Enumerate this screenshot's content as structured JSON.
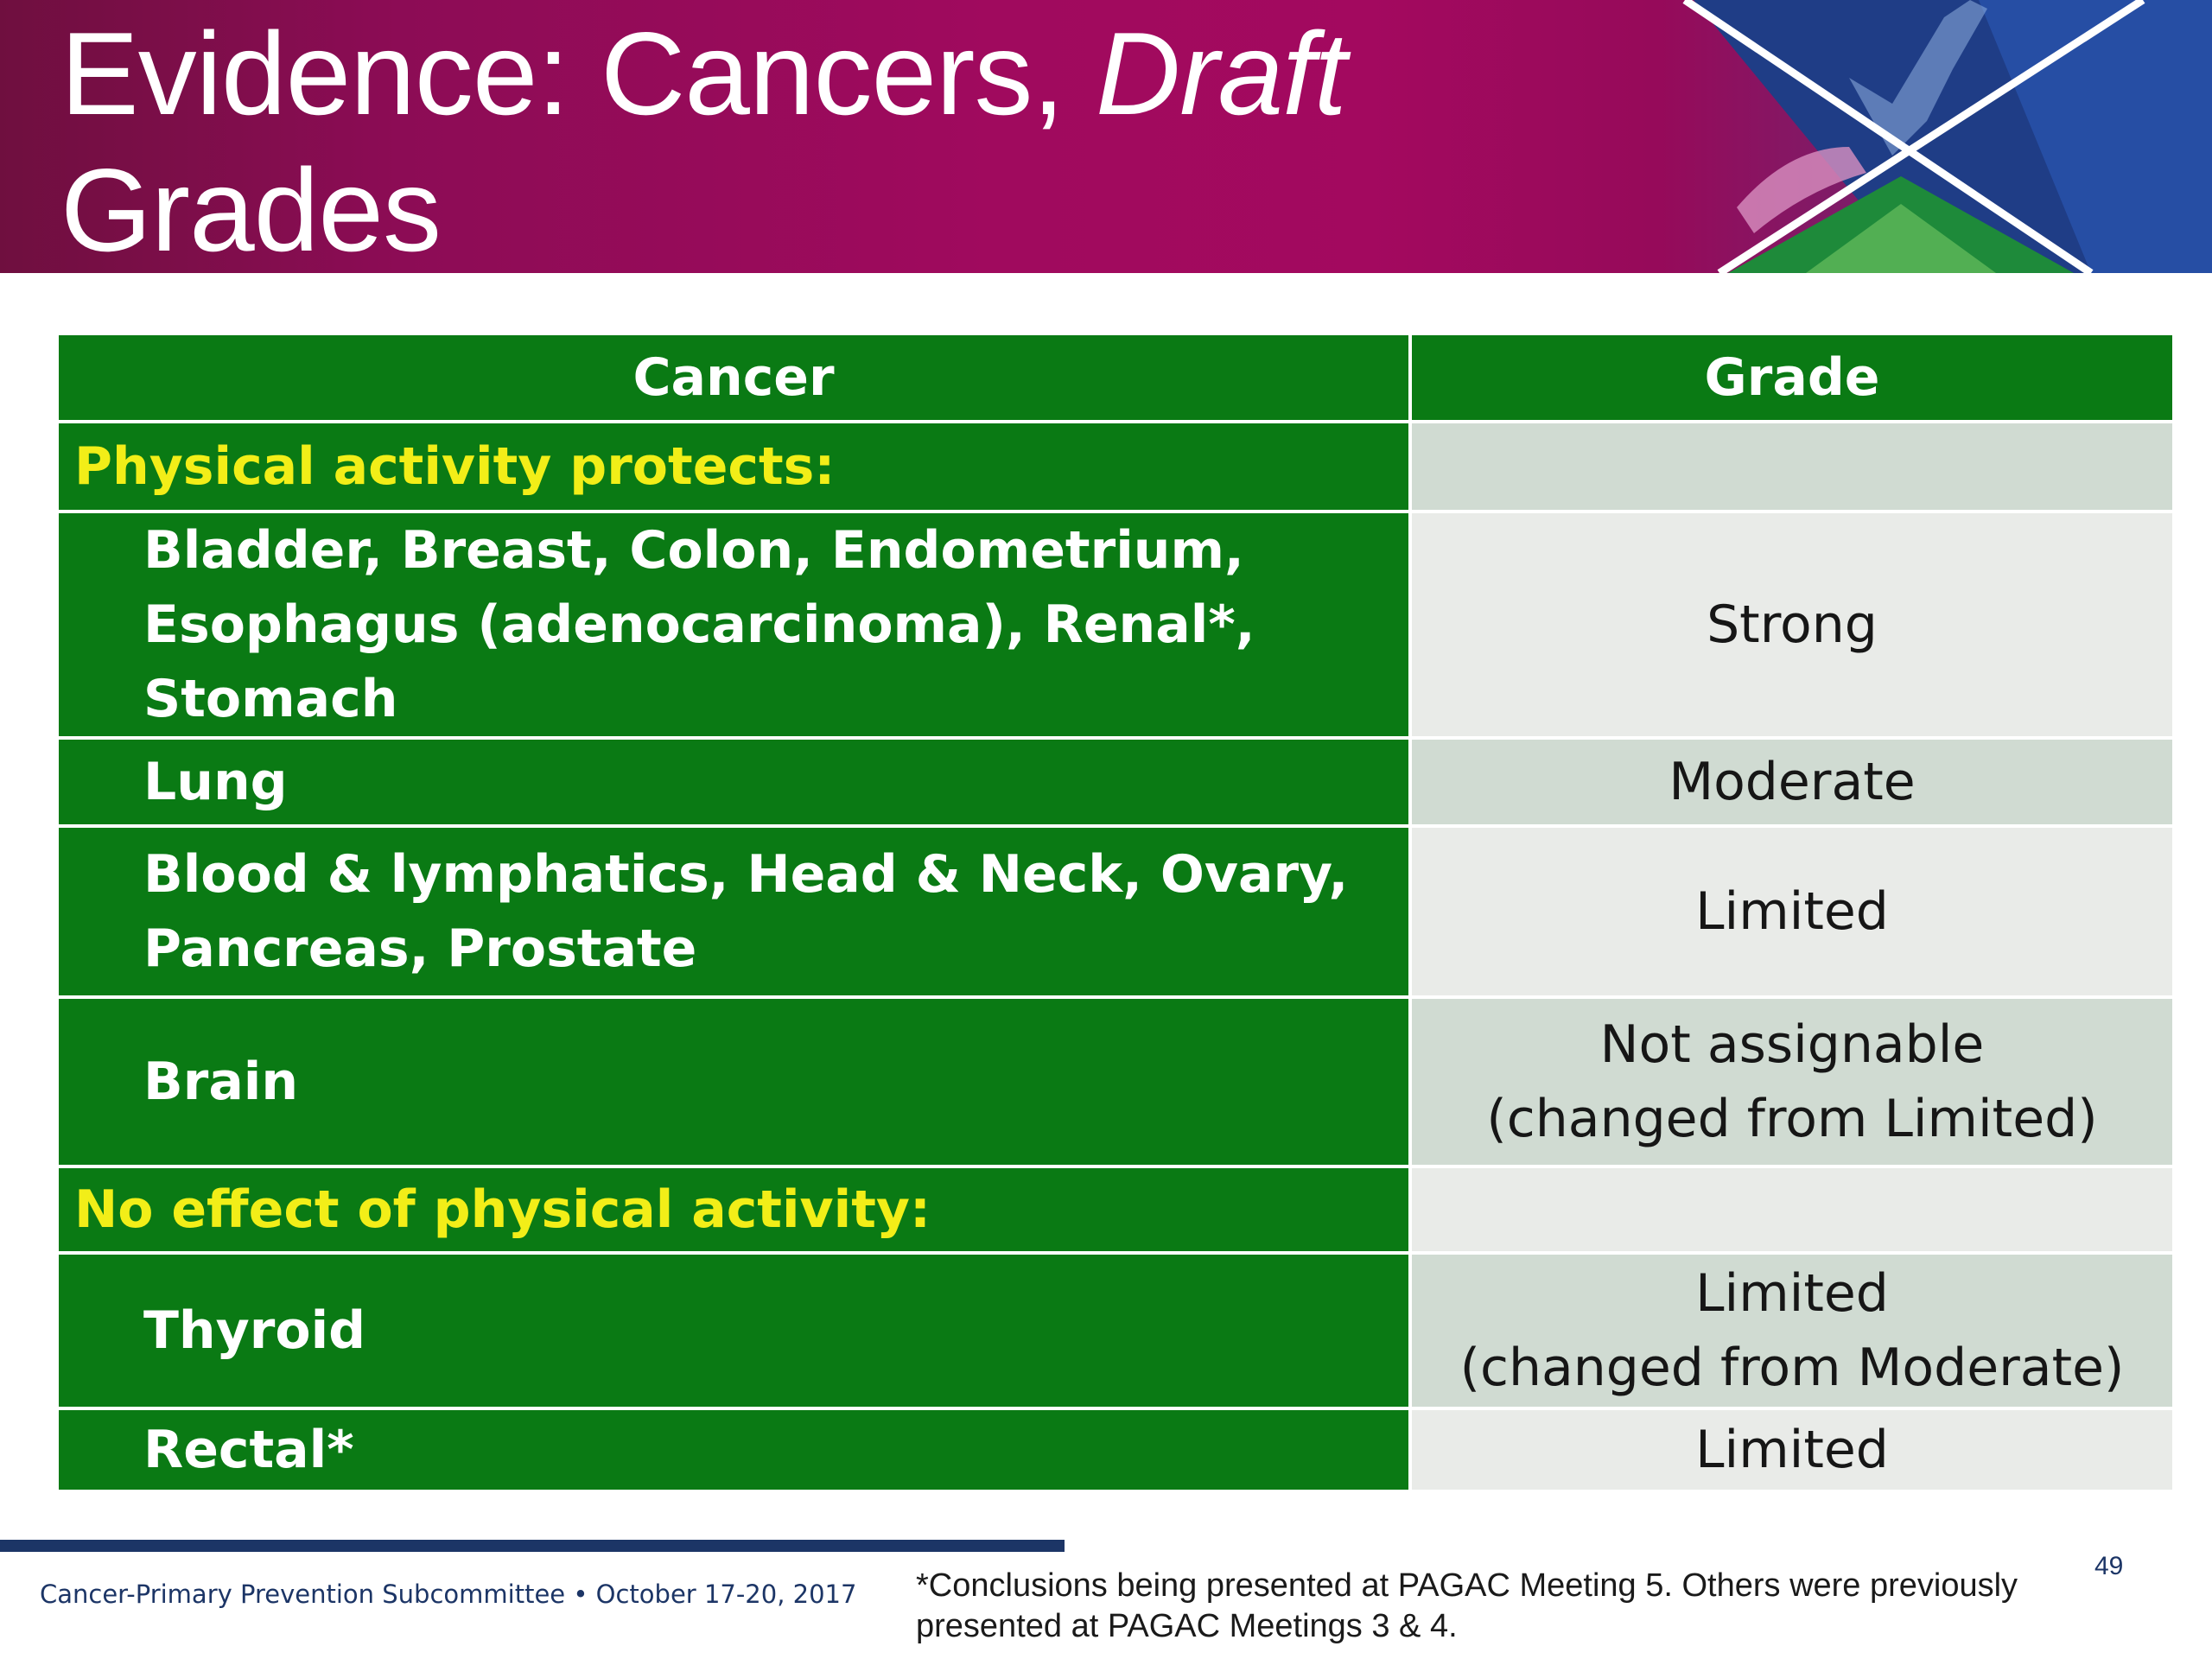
{
  "slide": {
    "title_line1": "Evidence: Cancers, ",
    "title_emphasis": "Draft",
    "title_line2": "Grades",
    "page_number": "49"
  },
  "table": {
    "headers": {
      "cancer": "Cancer",
      "grade": "Grade"
    },
    "rows": [
      {
        "cancer": "Physical activity protects:",
        "grade": "",
        "kind": "section"
      },
      {
        "cancer": "Bladder, Breast, Colon, Endometrium, Esophagus (adenocarcinoma), Renal*, Stomach",
        "grade": "Strong",
        "kind": "item"
      },
      {
        "cancer": "Lung",
        "grade": "Moderate",
        "kind": "item"
      },
      {
        "cancer": "Blood & lymphatics, Head & Neck, Ovary, Pancreas, Prostate",
        "grade": "Limited",
        "kind": "item"
      },
      {
        "cancer": "Brain",
        "grade": "Not assignable",
        "grade_note": "(changed from Limited)",
        "kind": "item"
      },
      {
        "cancer": "No effect of physical activity:",
        "grade": "",
        "kind": "section"
      },
      {
        "cancer": "Thyroid",
        "grade": "Limited",
        "grade_note": "(changed from Moderate)",
        "kind": "item"
      },
      {
        "cancer": "Rectal*",
        "grade": "Limited",
        "kind": "item"
      }
    ]
  },
  "footer": {
    "left": "Cancer-Primary Prevention Subcommittee • October 17-20, 2017",
    "footnote": "*Conclusions being presented at PAGAC Meeting 5. Others were previously presented at PAGAC Meetings 3 & 4."
  },
  "colors": {
    "banner": "#a00a5e",
    "table_green": "#0a7a14",
    "section_yellow": "#f2ee18",
    "grade_light": "#e9ebe8",
    "grade_dark": "#d0dbd2",
    "footer_navy": "#1c3566"
  }
}
